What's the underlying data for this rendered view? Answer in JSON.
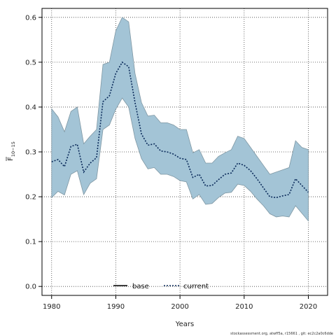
{
  "chart_data": {
    "type": "line",
    "xlabel": "Years",
    "ylabel_main": "F",
    "ylabel_sub": "10−15",
    "xlim": [
      1978.5,
      2023
    ],
    "ylim": [
      -0.02,
      0.62
    ],
    "xticks": [
      1980,
      1990,
      2000,
      2010,
      2020
    ],
    "yticks": [
      0.0,
      0.1,
      0.2,
      0.3,
      0.4,
      0.5,
      0.6
    ],
    "ytick_labels": [
      "0.0",
      "0.1",
      "0.2",
      "0.3",
      "0.4",
      "0.5",
      "0.6"
    ],
    "grid": true,
    "legend_position": "bottom-center",
    "legend": [
      {
        "name": "base",
        "style": "solid",
        "color": "#000000"
      },
      {
        "name": "current",
        "style": "dotted",
        "color": "#0a2a5a"
      }
    ],
    "colors": {
      "band_fill": "#a3c4d6",
      "band_edge": "#7f97a3",
      "current_line": "#0a2a5a"
    },
    "x": [
      1980,
      1981,
      1982,
      1983,
      1984,
      1985,
      1986,
      1987,
      1988,
      1989,
      1990,
      1991,
      1992,
      1993,
      1994,
      1995,
      1996,
      1997,
      1998,
      1999,
      2000,
      2001,
      2002,
      2003,
      2004,
      2005,
      2006,
      2007,
      2008,
      2009,
      2010,
      2011,
      2012,
      2013,
      2014,
      2015,
      2016,
      2017,
      2018,
      2019,
      2020
    ],
    "series": [
      {
        "name": "current",
        "values": [
          0.278,
          0.283,
          0.267,
          0.312,
          0.317,
          0.255,
          0.275,
          0.287,
          0.412,
          0.425,
          0.475,
          0.5,
          0.49,
          0.41,
          0.34,
          0.315,
          0.318,
          0.302,
          0.3,
          0.295,
          0.286,
          0.283,
          0.243,
          0.25,
          0.224,
          0.225,
          0.238,
          0.25,
          0.253,
          0.275,
          0.27,
          0.258,
          0.24,
          0.22,
          0.2,
          0.198,
          0.202,
          0.205,
          0.24,
          0.225,
          0.21
        ]
      },
      {
        "name": "upper",
        "values": [
          0.396,
          0.378,
          0.345,
          0.39,
          0.4,
          0.318,
          0.335,
          0.35,
          0.495,
          0.5,
          0.57,
          0.6,
          0.59,
          0.475,
          0.41,
          0.38,
          0.382,
          0.365,
          0.365,
          0.36,
          0.35,
          0.35,
          0.298,
          0.305,
          0.275,
          0.275,
          0.29,
          0.298,
          0.305,
          0.335,
          0.33,
          0.31,
          0.29,
          0.27,
          0.25,
          0.255,
          0.26,
          0.265,
          0.325,
          0.31,
          0.305
        ]
      },
      {
        "name": "lower",
        "values": [
          0.198,
          0.212,
          0.204,
          0.25,
          0.258,
          0.205,
          0.23,
          0.24,
          0.35,
          0.36,
          0.395,
          0.42,
          0.4,
          0.33,
          0.285,
          0.262,
          0.265,
          0.25,
          0.25,
          0.245,
          0.236,
          0.233,
          0.195,
          0.205,
          0.183,
          0.185,
          0.198,
          0.208,
          0.21,
          0.228,
          0.225,
          0.212,
          0.195,
          0.18,
          0.162,
          0.155,
          0.157,
          0.155,
          0.18,
          0.163,
          0.146
        ]
      }
    ]
  },
  "footnote": "stockassessment.org, atwff5a, r15661 , git: ec2c2a0c6dde"
}
